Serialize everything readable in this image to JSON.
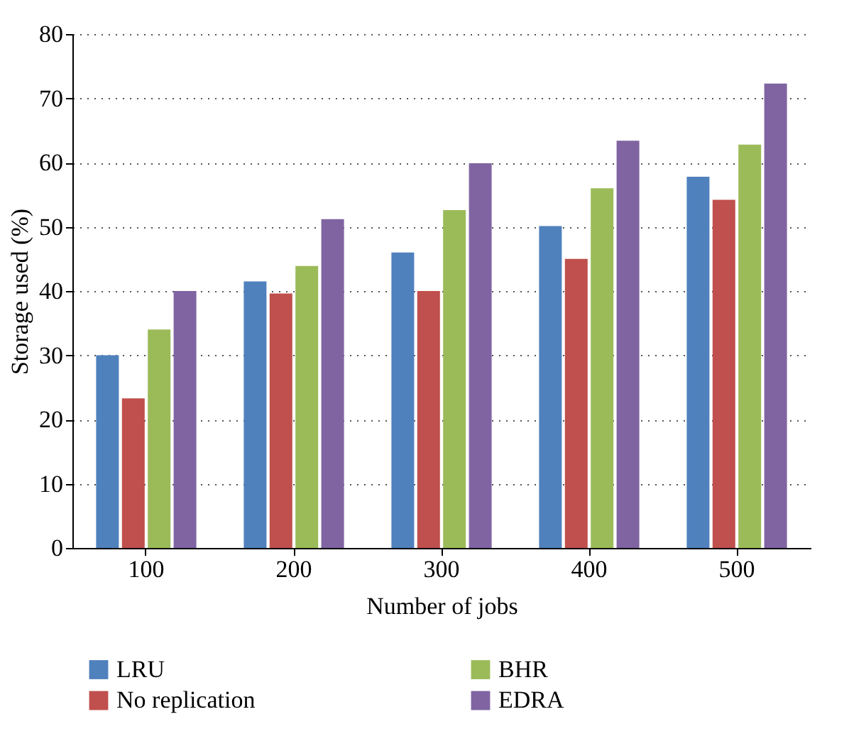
{
  "chart_data": {
    "type": "bar",
    "xlabel": "Number of jobs",
    "ylabel": "Storage used (%)",
    "categories": [
      "100",
      "200",
      "300",
      "400",
      "500"
    ],
    "series": [
      {
        "name": "LRU",
        "color": "#4f81bd",
        "values": [
          30,
          41.5,
          46,
          50.1,
          57.8
        ]
      },
      {
        "name": "No replication",
        "color": "#c0504d",
        "values": [
          23.3,
          39.6,
          40,
          45,
          54.2
        ]
      },
      {
        "name": "BHR",
        "color": "#9bbb59",
        "values": [
          34,
          43.9,
          52.6,
          56,
          62.8
        ]
      },
      {
        "name": "EDRA",
        "color": "#8064a2",
        "values": [
          40,
          51.2,
          59.9,
          63.4,
          72.3
        ]
      }
    ],
    "ylim": [
      0,
      80
    ],
    "yticks": [
      0,
      10,
      20,
      30,
      40,
      50,
      60,
      70,
      80
    ],
    "grid": "y",
    "legend": "bottom"
  }
}
